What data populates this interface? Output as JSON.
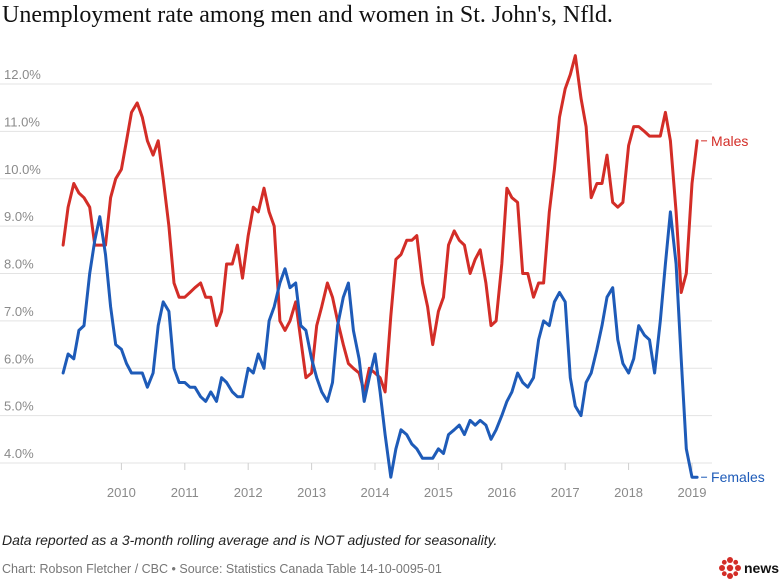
{
  "chart_data": {
    "type": "line",
    "title": "Unemployment rate among men and women in St. John's, Nfld.",
    "note": "Data reported as a 3-month rolling average and is NOT adjusted for seasonality.",
    "credit": "Chart: Robson Fletcher / CBC • Source: Statistics Canada Table 14-10-0095-01",
    "brand": "news",
    "xlabel": "",
    "ylabel": "",
    "xlim": [
      2009.0,
      2019.3
    ],
    "ylim": [
      3.8,
      12.6
    ],
    "x_ticks": [
      {
        "value": 2010,
        "label": "2010"
      },
      {
        "value": 2011,
        "label": "2011"
      },
      {
        "value": 2012,
        "label": "2012"
      },
      {
        "value": 2013,
        "label": "2013"
      },
      {
        "value": 2014,
        "label": "2014"
      },
      {
        "value": 2015,
        "label": "2015"
      },
      {
        "value": 2016,
        "label": "2016"
      },
      {
        "value": 2017,
        "label": "2017"
      },
      {
        "value": 2018,
        "label": "2018"
      },
      {
        "value": 2019,
        "label": "2019"
      }
    ],
    "y_ticks": [
      {
        "value": 4,
        "label": "4.0%"
      },
      {
        "value": 5,
        "label": "5.0%"
      },
      {
        "value": 6,
        "label": "6.0%"
      },
      {
        "value": 7,
        "label": "7.0%"
      },
      {
        "value": 8,
        "label": "8.0%"
      },
      {
        "value": 9,
        "label": "9.0%"
      },
      {
        "value": 10,
        "label": "10.0%"
      },
      {
        "value": 11,
        "label": "11.0%"
      },
      {
        "value": 12,
        "label": "12.0%"
      }
    ],
    "grid": true,
    "colors": {
      "males": "#d32d27",
      "females": "#1e5bb8",
      "grid": "#e3e3e3",
      "tick": "#8a8a8a"
    },
    "series": [
      {
        "name": "Males",
        "color": "#d32d27",
        "values": [
          [
            2009.08,
            8.6
          ],
          [
            2009.16,
            9.4
          ],
          [
            2009.25,
            9.9
          ],
          [
            2009.33,
            9.7
          ],
          [
            2009.41,
            9.6
          ],
          [
            2009.5,
            9.4
          ],
          [
            2009.58,
            8.6
          ],
          [
            2009.66,
            8.6
          ],
          [
            2009.75,
            8.6
          ],
          [
            2009.83,
            9.6
          ],
          [
            2009.91,
            10.0
          ],
          [
            2010.0,
            10.2
          ],
          [
            2010.08,
            10.8
          ],
          [
            2010.16,
            11.4
          ],
          [
            2010.25,
            11.6
          ],
          [
            2010.33,
            11.3
          ],
          [
            2010.41,
            10.8
          ],
          [
            2010.5,
            10.5
          ],
          [
            2010.58,
            10.8
          ],
          [
            2010.66,
            10.0
          ],
          [
            2010.75,
            9.0
          ],
          [
            2010.83,
            7.8
          ],
          [
            2010.91,
            7.5
          ],
          [
            2011.0,
            7.5
          ],
          [
            2011.08,
            7.6
          ],
          [
            2011.16,
            7.7
          ],
          [
            2011.25,
            7.8
          ],
          [
            2011.33,
            7.5
          ],
          [
            2011.41,
            7.5
          ],
          [
            2011.5,
            6.9
          ],
          [
            2011.58,
            7.2
          ],
          [
            2011.66,
            8.2
          ],
          [
            2011.75,
            8.2
          ],
          [
            2011.83,
            8.6
          ],
          [
            2011.91,
            7.9
          ],
          [
            2012.0,
            8.8
          ],
          [
            2012.08,
            9.4
          ],
          [
            2012.16,
            9.3
          ],
          [
            2012.25,
            9.8
          ],
          [
            2012.33,
            9.3
          ],
          [
            2012.41,
            9.0
          ],
          [
            2012.5,
            7.0
          ],
          [
            2012.58,
            6.8
          ],
          [
            2012.66,
            7.0
          ],
          [
            2012.75,
            7.4
          ],
          [
            2012.83,
            6.6
          ],
          [
            2012.91,
            5.8
          ],
          [
            2013.0,
            5.9
          ],
          [
            2013.08,
            6.9
          ],
          [
            2013.16,
            7.3
          ],
          [
            2013.25,
            7.8
          ],
          [
            2013.33,
            7.5
          ],
          [
            2013.41,
            7.0
          ],
          [
            2013.5,
            6.5
          ],
          [
            2013.58,
            6.1
          ],
          [
            2013.66,
            6.0
          ],
          [
            2013.75,
            5.9
          ],
          [
            2013.83,
            5.5
          ],
          [
            2013.91,
            6.0
          ],
          [
            2014.0,
            5.9
          ],
          [
            2014.08,
            5.8
          ],
          [
            2014.16,
            5.5
          ],
          [
            2014.25,
            7.1
          ],
          [
            2014.33,
            8.3
          ],
          [
            2014.41,
            8.4
          ],
          [
            2014.5,
            8.7
          ],
          [
            2014.58,
            8.7
          ],
          [
            2014.66,
            8.8
          ],
          [
            2014.75,
            7.8
          ],
          [
            2014.83,
            7.3
          ],
          [
            2014.91,
            6.5
          ],
          [
            2015.0,
            7.2
          ],
          [
            2015.08,
            7.5
          ],
          [
            2015.16,
            8.6
          ],
          [
            2015.25,
            8.9
          ],
          [
            2015.33,
            8.7
          ],
          [
            2015.41,
            8.6
          ],
          [
            2015.5,
            8.0
          ],
          [
            2015.58,
            8.3
          ],
          [
            2015.66,
            8.5
          ],
          [
            2015.75,
            7.8
          ],
          [
            2015.83,
            6.9
          ],
          [
            2015.91,
            7.0
          ],
          [
            2016.0,
            8.2
          ],
          [
            2016.08,
            9.8
          ],
          [
            2016.16,
            9.6
          ],
          [
            2016.25,
            9.5
          ],
          [
            2016.33,
            8.0
          ],
          [
            2016.41,
            8.0
          ],
          [
            2016.5,
            7.5
          ],
          [
            2016.58,
            7.8
          ],
          [
            2016.66,
            7.8
          ],
          [
            2016.75,
            9.3
          ],
          [
            2016.83,
            10.2
          ],
          [
            2016.91,
            11.3
          ],
          [
            2017.0,
            11.9
          ],
          [
            2017.08,
            12.2
          ],
          [
            2017.16,
            12.6
          ],
          [
            2017.25,
            11.7
          ],
          [
            2017.33,
            11.1
          ],
          [
            2017.41,
            9.6
          ],
          [
            2017.5,
            9.9
          ],
          [
            2017.58,
            9.9
          ],
          [
            2017.66,
            10.5
          ],
          [
            2017.75,
            9.5
          ],
          [
            2017.83,
            9.4
          ],
          [
            2017.91,
            9.5
          ],
          [
            2018.0,
            10.7
          ],
          [
            2018.08,
            11.1
          ],
          [
            2018.16,
            11.1
          ],
          [
            2018.25,
            11.0
          ],
          [
            2018.33,
            10.9
          ],
          [
            2018.41,
            10.9
          ],
          [
            2018.5,
            10.9
          ],
          [
            2018.58,
            11.4
          ],
          [
            2018.66,
            10.8
          ],
          [
            2018.75,
            9.3
          ],
          [
            2018.83,
            7.6
          ],
          [
            2018.91,
            8.0
          ],
          [
            2019.0,
            9.9
          ],
          [
            2019.08,
            10.8
          ]
        ]
      },
      {
        "name": "Females",
        "color": "#1e5bb8",
        "values": [
          [
            2009.08,
            5.9
          ],
          [
            2009.16,
            6.3
          ],
          [
            2009.25,
            6.2
          ],
          [
            2009.33,
            6.8
          ],
          [
            2009.41,
            6.9
          ],
          [
            2009.5,
            8.0
          ],
          [
            2009.58,
            8.7
          ],
          [
            2009.66,
            9.2
          ],
          [
            2009.75,
            8.4
          ],
          [
            2009.83,
            7.3
          ],
          [
            2009.91,
            6.5
          ],
          [
            2010.0,
            6.4
          ],
          [
            2010.08,
            6.1
          ],
          [
            2010.16,
            5.9
          ],
          [
            2010.25,
            5.9
          ],
          [
            2010.33,
            5.9
          ],
          [
            2010.41,
            5.6
          ],
          [
            2010.5,
            5.9
          ],
          [
            2010.58,
            6.9
          ],
          [
            2010.66,
            7.4
          ],
          [
            2010.75,
            7.2
          ],
          [
            2010.83,
            6.0
          ],
          [
            2010.91,
            5.7
          ],
          [
            2011.0,
            5.7
          ],
          [
            2011.08,
            5.6
          ],
          [
            2011.16,
            5.6
          ],
          [
            2011.25,
            5.4
          ],
          [
            2011.33,
            5.3
          ],
          [
            2011.41,
            5.5
          ],
          [
            2011.5,
            5.3
          ],
          [
            2011.58,
            5.8
          ],
          [
            2011.66,
            5.7
          ],
          [
            2011.75,
            5.5
          ],
          [
            2011.83,
            5.4
          ],
          [
            2011.91,
            5.4
          ],
          [
            2012.0,
            6.0
          ],
          [
            2012.08,
            5.9
          ],
          [
            2012.16,
            6.3
          ],
          [
            2012.25,
            6.0
          ],
          [
            2012.33,
            7.0
          ],
          [
            2012.41,
            7.3
          ],
          [
            2012.5,
            7.8
          ],
          [
            2012.58,
            8.1
          ],
          [
            2012.66,
            7.7
          ],
          [
            2012.75,
            7.8
          ],
          [
            2012.83,
            6.9
          ],
          [
            2012.91,
            6.8
          ],
          [
            2013.0,
            6.2
          ],
          [
            2013.08,
            5.8
          ],
          [
            2013.16,
            5.5
          ],
          [
            2013.25,
            5.3
          ],
          [
            2013.33,
            5.7
          ],
          [
            2013.41,
            6.9
          ],
          [
            2013.5,
            7.5
          ],
          [
            2013.58,
            7.8
          ],
          [
            2013.66,
            6.8
          ],
          [
            2013.75,
            6.2
          ],
          [
            2013.83,
            5.3
          ],
          [
            2013.91,
            5.8
          ],
          [
            2014.0,
            6.3
          ],
          [
            2014.08,
            5.5
          ],
          [
            2014.16,
            4.6
          ],
          [
            2014.25,
            3.7
          ],
          [
            2014.33,
            4.3
          ],
          [
            2014.41,
            4.7
          ],
          [
            2014.5,
            4.6
          ],
          [
            2014.58,
            4.4
          ],
          [
            2014.66,
            4.3
          ],
          [
            2014.75,
            4.1
          ],
          [
            2014.83,
            4.1
          ],
          [
            2014.91,
            4.1
          ],
          [
            2015.0,
            4.3
          ],
          [
            2015.08,
            4.2
          ],
          [
            2015.16,
            4.6
          ],
          [
            2015.25,
            4.7
          ],
          [
            2015.33,
            4.8
          ],
          [
            2015.41,
            4.6
          ],
          [
            2015.5,
            4.9
          ],
          [
            2015.58,
            4.8
          ],
          [
            2015.66,
            4.9
          ],
          [
            2015.75,
            4.8
          ],
          [
            2015.83,
            4.5
          ],
          [
            2015.91,
            4.7
          ],
          [
            2016.0,
            5.0
          ],
          [
            2016.08,
            5.3
          ],
          [
            2016.16,
            5.5
          ],
          [
            2016.25,
            5.9
          ],
          [
            2016.33,
            5.7
          ],
          [
            2016.41,
            5.6
          ],
          [
            2016.5,
            5.8
          ],
          [
            2016.58,
            6.6
          ],
          [
            2016.66,
            7.0
          ],
          [
            2016.75,
            6.9
          ],
          [
            2016.83,
            7.4
          ],
          [
            2016.91,
            7.6
          ],
          [
            2017.0,
            7.4
          ],
          [
            2017.08,
            5.8
          ],
          [
            2017.16,
            5.2
          ],
          [
            2017.25,
            5.0
          ],
          [
            2017.33,
            5.7
          ],
          [
            2017.41,
            5.9
          ],
          [
            2017.5,
            6.4
          ],
          [
            2017.58,
            6.9
          ],
          [
            2017.66,
            7.5
          ],
          [
            2017.75,
            7.7
          ],
          [
            2017.83,
            6.6
          ],
          [
            2017.91,
            6.1
          ],
          [
            2018.0,
            5.9
          ],
          [
            2018.08,
            6.2
          ],
          [
            2018.16,
            6.9
          ],
          [
            2018.25,
            6.7
          ],
          [
            2018.33,
            6.6
          ],
          [
            2018.41,
            5.9
          ],
          [
            2018.5,
            7.0
          ],
          [
            2018.58,
            8.2
          ],
          [
            2018.66,
            9.3
          ],
          [
            2018.75,
            8.2
          ],
          [
            2018.83,
            6.2
          ],
          [
            2018.91,
            4.3
          ],
          [
            2019.0,
            3.7
          ],
          [
            2019.08,
            3.7
          ]
        ]
      }
    ]
  }
}
